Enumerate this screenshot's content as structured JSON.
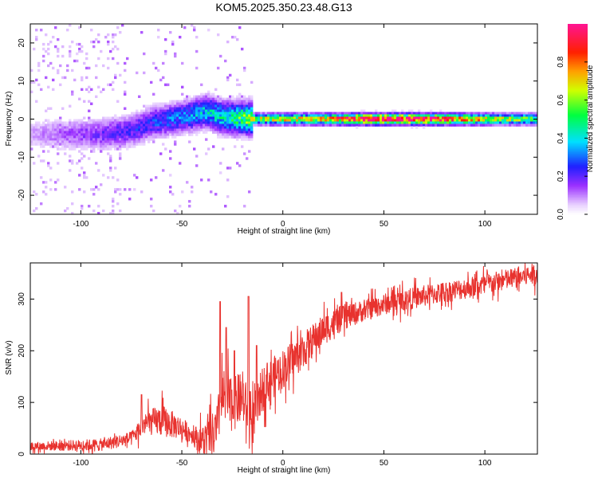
{
  "title": "KOM5.2025.350.23.48.G13",
  "chart_data": [
    {
      "type": "heatmap",
      "xlabel": "Height of straight line (km)",
      "ylabel": "Frequency (Hz)",
      "xlim": [
        -125,
        126
      ],
      "ylim": [
        -25,
        25
      ],
      "xticks": [
        -100,
        -50,
        0,
        50,
        100
      ],
      "yticks": [
        -20,
        -10,
        0,
        10,
        20
      ],
      "colorbar": {
        "label": "Normalized spectral amplitude",
        "range": [
          0,
          1
        ],
        "ticks": [
          "0.0",
          "0.2",
          "0.4",
          "0.6",
          "0.8"
        ],
        "stops": [
          {
            "v": 0.0,
            "c": "#ffffff"
          },
          {
            "v": 0.05,
            "c": "#e8d0ff"
          },
          {
            "v": 0.15,
            "c": "#9b30ff"
          },
          {
            "v": 0.25,
            "c": "#2020ff"
          },
          {
            "v": 0.38,
            "c": "#00e0ff"
          },
          {
            "v": 0.52,
            "c": "#00ff40"
          },
          {
            "v": 0.65,
            "c": "#d0ff00"
          },
          {
            "v": 0.75,
            "c": "#ffa000"
          },
          {
            "v": 0.85,
            "c": "#ff2000"
          },
          {
            "v": 1.0,
            "c": "#ff1493"
          }
        ]
      },
      "ridge": [
        {
          "x": -110,
          "f": -4
        },
        {
          "x": -90,
          "f": -4
        },
        {
          "x": -75,
          "f": -3
        },
        {
          "x": -65,
          "f": -1
        },
        {
          "x": -55,
          "f": 0
        },
        {
          "x": -45,
          "f": 1
        },
        {
          "x": -38,
          "f": 2
        },
        {
          "x": -30,
          "f": 0.5
        },
        {
          "x": -15,
          "f": 0
        },
        {
          "x": 0,
          "f": 0
        },
        {
          "x": 126,
          "f": 0
        }
      ],
      "ridge_amplitude": [
        {
          "x": -125,
          "a": 0.08
        },
        {
          "x": -80,
          "a": 0.2
        },
        {
          "x": -50,
          "a": 0.3
        },
        {
          "x": -25,
          "a": 0.45
        },
        {
          "x": -15,
          "a": 0.6
        },
        {
          "x": 20,
          "a": 0.7
        },
        {
          "x": 40,
          "a": 0.95
        },
        {
          "x": 70,
          "a": 0.95
        },
        {
          "x": 95,
          "a": 0.7
        },
        {
          "x": 126,
          "a": 0.5
        }
      ]
    },
    {
      "type": "line",
      "xlabel": "Height of straight line (km)",
      "ylabel": "SNR (v/v)",
      "xlim": [
        -125,
        126
      ],
      "ylim": [
        0,
        370
      ],
      "xticks": [
        -100,
        -50,
        0,
        50,
        100
      ],
      "yticks": [
        0,
        100,
        200,
        300
      ],
      "color": "#e8322e",
      "trend": [
        {
          "x": -125,
          "y": 15
        },
        {
          "x": -90,
          "y": 18
        },
        {
          "x": -75,
          "y": 30
        },
        {
          "x": -68,
          "y": 60
        },
        {
          "x": -60,
          "y": 65
        },
        {
          "x": -50,
          "y": 50
        },
        {
          "x": -40,
          "y": 25
        },
        {
          "x": -33,
          "y": 40
        },
        {
          "x": -30,
          "y": 110
        },
        {
          "x": -25,
          "y": 95
        },
        {
          "x": -20,
          "y": 110
        },
        {
          "x": -15,
          "y": 60
        },
        {
          "x": -10,
          "y": 130
        },
        {
          "x": 0,
          "y": 165
        },
        {
          "x": 10,
          "y": 200
        },
        {
          "x": 20,
          "y": 240
        },
        {
          "x": 30,
          "y": 265
        },
        {
          "x": 50,
          "y": 290
        },
        {
          "x": 75,
          "y": 310
        },
        {
          "x": 100,
          "y": 328
        },
        {
          "x": 126,
          "y": 350
        }
      ],
      "spikes": [
        {
          "x": -31,
          "y": 295
        },
        {
          "x": -28,
          "y": 245
        },
        {
          "x": -24,
          "y": 200
        },
        {
          "x": -17,
          "y": 305
        },
        {
          "x": -13,
          "y": 210
        },
        {
          "x": -70,
          "y": 115
        }
      ],
      "noise": [
        {
          "x": -125,
          "a": 12
        },
        {
          "x": -75,
          "a": 20
        },
        {
          "x": -60,
          "a": 45
        },
        {
          "x": -45,
          "a": 25
        },
        {
          "x": -30,
          "a": 80
        },
        {
          "x": -10,
          "a": 60
        },
        {
          "x": 10,
          "a": 50
        },
        {
          "x": 40,
          "a": 30
        },
        {
          "x": 126,
          "a": 30
        }
      ]
    }
  ]
}
